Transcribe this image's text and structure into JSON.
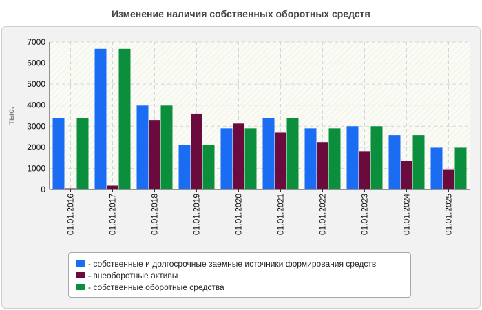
{
  "chart_data": {
    "type": "bar",
    "title": "Изменение наличия собственных оборотных средств",
    "ylabel": "тыс.",
    "xlabel": "",
    "ylim": [
      0,
      7000
    ],
    "yticks": [
      0,
      1000,
      2000,
      3000,
      4000,
      5000,
      6000,
      7000
    ],
    "grid": true,
    "legend_position": "bottom",
    "categories": [
      "01.01.2016",
      "01.01.2017",
      "01.01.2018",
      "01.01.2019",
      "01.01.2020",
      "01.01.2021",
      "01.01.2022",
      "01.01.2023",
      "01.01.2024",
      "01.01.2025"
    ],
    "series": [
      {
        "name": "- собственные и долгосрочные заемные источники формирования средств",
        "color": "#1a6cf2",
        "values": [
          3400,
          6680,
          3980,
          2120,
          2900,
          3400,
          2900,
          3000,
          2580,
          1980
        ]
      },
      {
        "name": "- внеоборотные активы",
        "color": "#6b0a3c",
        "values": [
          50,
          180,
          3300,
          3600,
          3130,
          2700,
          2250,
          1820,
          1360,
          930
        ]
      },
      {
        "name": "- собственные оборотные средства",
        "color": "#0b8f3c",
        "values": [
          3400,
          6680,
          3980,
          2120,
          2900,
          3400,
          2900,
          3000,
          2580,
          1980
        ]
      }
    ]
  }
}
